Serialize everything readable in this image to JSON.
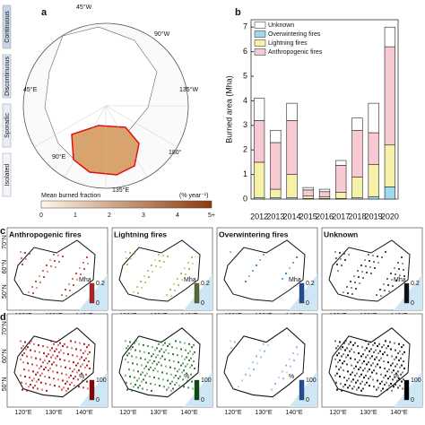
{
  "chart_data": {
    "type": "bar",
    "stacked": true,
    "panel": "b",
    "ylabel": "Burned area (Mha)",
    "categories": [
      "2012",
      "2013",
      "2014",
      "2015",
      "2016",
      "2017",
      "2018",
      "2019",
      "2020"
    ],
    "series": [
      {
        "name": "Overwintering fires",
        "color": "#9fd9ee",
        "values": [
          0.05,
          0.05,
          0.05,
          0.02,
          0.02,
          0.02,
          0.05,
          0.1,
          0.5
        ]
      },
      {
        "name": "Lightning fires",
        "color": "#f6f1a8",
        "values": [
          1.45,
          0.35,
          0.95,
          0.1,
          0.08,
          0.25,
          0.85,
          1.3,
          1.7
        ]
      },
      {
        "name": "Anthropogenic fires",
        "color": "#f7c9d2",
        "values": [
          1.7,
          1.9,
          2.2,
          0.25,
          0.2,
          1.1,
          1.9,
          1.3,
          4.0
        ]
      },
      {
        "name": "Unknown",
        "color": "#ffffff",
        "values": [
          0.9,
          0.5,
          0.7,
          0.1,
          0.1,
          0.2,
          0.5,
          1.2,
          0.8
        ]
      }
    ],
    "legend_order": [
      "Unknown",
      "Overwintering fires",
      "Lightning fires",
      "Anthropogenic fires"
    ],
    "ylim": [
      0,
      7.3
    ],
    "yticks": [
      0,
      1,
      2,
      3,
      4,
      5,
      6,
      7
    ]
  },
  "panel_a": {
    "label": "a",
    "permafrost": [
      "Continuous",
      "Discontinuous",
      "Sporadic",
      "Isolated"
    ],
    "longitudes": [
      "45°W",
      "90°W",
      "135°W",
      "180°",
      "135°E",
      "90°E",
      "45°E"
    ],
    "colorbar_title": "Mean burned fraction",
    "colorbar_unit": "(% year⁻¹)",
    "colorbar_ticks": [
      0,
      1,
      2,
      3,
      4,
      {
        "value": 5,
        "label": "5+"
      }
    ]
  },
  "panel_c": {
    "label": "c",
    "titles": [
      "Anthropogenic fires",
      "Lightning fires",
      "Overwintering fires",
      "Unknown"
    ],
    "colorbar_unit": "Mha",
    "colorbar_ticks": [
      0,
      0.2
    ]
  },
  "panel_d": {
    "label": "d",
    "colorbar_unit": "%",
    "colorbar_ticks": [
      0,
      100
    ]
  },
  "map_axes": {
    "lon": [
      "120°E",
      "130°E",
      "140°E"
    ],
    "lat": [
      "70°N",
      "60°N",
      "50°N"
    ]
  }
}
